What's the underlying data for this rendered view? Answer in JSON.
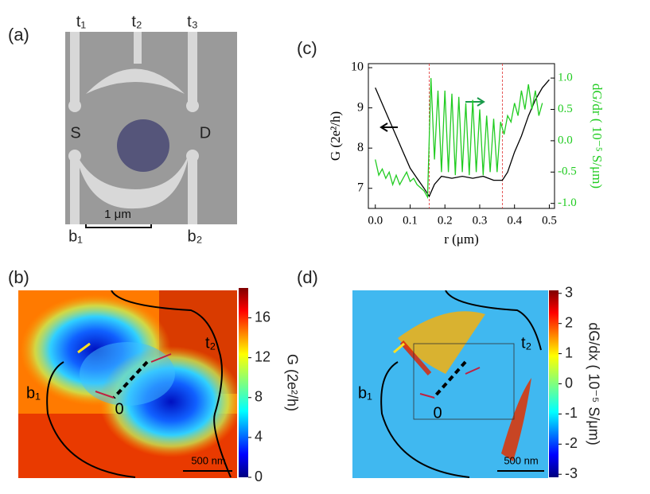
{
  "panel_labels": [
    "(a)",
    "(b)",
    "(c)",
    "(d)"
  ],
  "panel_a": {
    "terminals": [
      "t₁",
      "t₂",
      "t₃",
      "S",
      "D",
      "b₁",
      "b₂"
    ],
    "scale_bar": "1 μm"
  },
  "panel_b": {
    "labels": [
      "t₂",
      "b₁",
      "0"
    ],
    "scale_bar": "500 nm"
  },
  "panel_d": {
    "labels": [
      "t₂",
      "b₁",
      "0"
    ],
    "scale_bar": "500 nm"
  },
  "chart_data": [
    {
      "type": "line",
      "xlabel": "r (μm)",
      "ylabel": "G (2e²/h)",
      "y2label": "dG/dr ( 10⁻⁵ S/μm)",
      "xlim": [
        -0.02,
        0.515
      ],
      "xticks": [
        {
          "value": 0,
          "label": "0.0"
        },
        0.1,
        0.2,
        0.3,
        0.4,
        0.5
      ],
      "ylim": [
        6.5,
        10.1
      ],
      "yticks": [
        7,
        8,
        9,
        10
      ],
      "y2lim": [
        -1.08,
        1.23
      ],
      "y2ticks": [
        {
          "value": -1,
          "label": "-1.0"
        },
        {
          "value": -0.5,
          "label": "-0.5"
        },
        {
          "value": 0,
          "label": "0.0"
        },
        0.5,
        {
          "value": 1,
          "label": "1.0"
        }
      ],
      "markers": [
        0.155,
        0.365
      ],
      "series": [
        {
          "name": "G",
          "color": "#000000",
          "axis": "y",
          "x": [
            0,
            0.02,
            0.04,
            0.06,
            0.08,
            0.1,
            0.12,
            0.14,
            0.155,
            0.17,
            0.19,
            0.22,
            0.25,
            0.28,
            0.31,
            0.34,
            0.365,
            0.38,
            0.4,
            0.42,
            0.44,
            0.46,
            0.48,
            0.5
          ],
          "values": [
            9.5,
            9.1,
            8.7,
            8.3,
            7.9,
            7.5,
            7.25,
            7.0,
            6.8,
            7.1,
            7.3,
            7.25,
            7.3,
            7.25,
            7.3,
            7.2,
            7.2,
            7.4,
            7.9,
            8.3,
            8.8,
            9.2,
            9.5,
            9.7
          ]
        },
        {
          "name": "dG/dr",
          "color": "#22cc22",
          "axis": "y2",
          "x": [
            0,
            0.01,
            0.02,
            0.03,
            0.04,
            0.05,
            0.06,
            0.07,
            0.08,
            0.09,
            0.1,
            0.11,
            0.12,
            0.13,
            0.14,
            0.15,
            0.16,
            0.17,
            0.18,
            0.19,
            0.2,
            0.21,
            0.22,
            0.23,
            0.24,
            0.25,
            0.26,
            0.27,
            0.28,
            0.29,
            0.3,
            0.31,
            0.32,
            0.33,
            0.34,
            0.35,
            0.36,
            0.37,
            0.38,
            0.39,
            0.4,
            0.41,
            0.42,
            0.43,
            0.44,
            0.45,
            0.46,
            0.47,
            0.48
          ],
          "values": [
            -0.3,
            -0.55,
            -0.45,
            -0.6,
            -0.5,
            -0.7,
            -0.55,
            -0.7,
            -0.6,
            -0.5,
            -0.65,
            -0.6,
            -0.7,
            -0.75,
            -0.8,
            -0.9,
            1.0,
            -0.3,
            0.8,
            -0.5,
            0.8,
            -0.5,
            0.75,
            -0.55,
            0.7,
            -0.5,
            0.6,
            -0.55,
            0.65,
            -0.5,
            0.5,
            -0.55,
            0.4,
            -0.5,
            0.35,
            -0.5,
            0.3,
            0.1,
            0.4,
            0.3,
            0.6,
            0.4,
            0.8,
            0.5,
            0.9,
            0.5,
            0.8,
            0.4,
            0.6
          ]
        }
      ]
    },
    {
      "type": "colorbar",
      "label": "G (2e²/h)",
      "ylim": [
        0,
        19
      ],
      "yticks": [
        0,
        4,
        8,
        12,
        16
      ]
    },
    {
      "type": "colorbar",
      "label": "dG/dx ( 10⁻⁵ S/μm)",
      "ylim": [
        -3.1,
        3.1
      ],
      "yticks": [
        -3,
        -2,
        -1,
        0,
        1,
        2,
        3
      ]
    }
  ]
}
